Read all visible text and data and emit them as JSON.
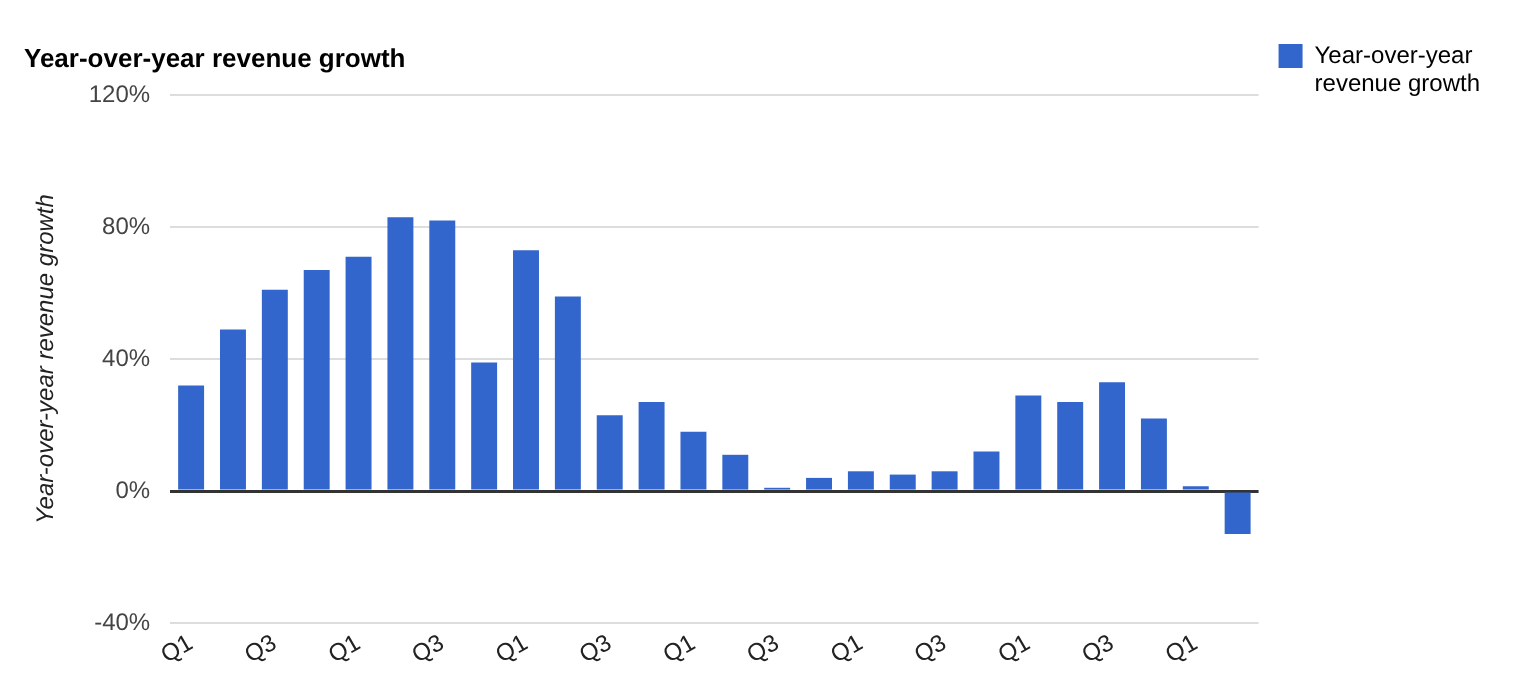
{
  "chart_data": {
    "type": "bar",
    "title": "Year-over-year revenue growth",
    "ylabel": "Year-over-year revenue growth",
    "categories": [
      "Q1",
      null,
      "Q3",
      null,
      "Q1",
      null,
      "Q3",
      null,
      "Q1",
      null,
      "Q3",
      null,
      "Q1",
      null,
      "Q3",
      null,
      "Q1",
      null,
      "Q3",
      null,
      "Q1",
      null,
      "Q3",
      null,
      "Q1",
      null
    ],
    "series": [
      {
        "name": "Year-over-year revenue growth",
        "color": "#3366cc",
        "values": [
          32,
          49,
          61,
          67,
          71,
          83,
          82,
          39,
          73,
          59,
          23,
          27,
          18,
          11,
          1,
          4,
          6,
          5,
          6,
          12,
          29,
          27,
          33,
          22,
          1.5,
          -13
        ]
      }
    ],
    "ylim": [
      -40,
      120
    ],
    "yticks": [
      {
        "value": -40,
        "label": "-40%"
      },
      {
        "value": 0,
        "label": "0%"
      },
      {
        "value": 40,
        "label": "40%"
      },
      {
        "value": 80,
        "label": "80%"
      },
      {
        "value": 120,
        "label": "120%"
      }
    ],
    "grid": "y",
    "legend": "top right"
  }
}
